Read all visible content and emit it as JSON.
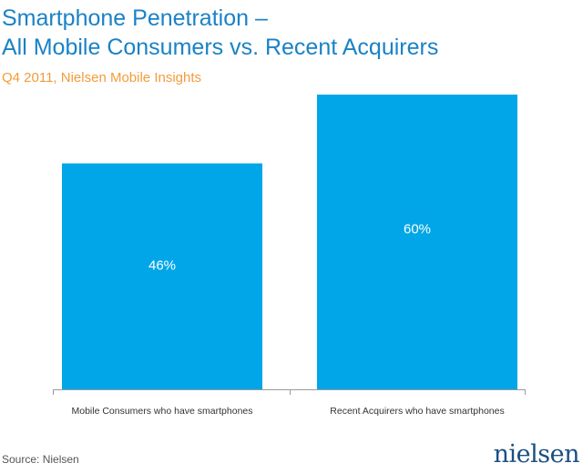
{
  "chart_data": {
    "type": "bar",
    "title_lines": [
      "Smartphone Penetration –",
      "All Mobile Consumers vs. Recent Acquirers"
    ],
    "subtitle": "Q4 2011, Nielsen Mobile Insights",
    "categories": [
      "Mobile Consumers who have smartphones",
      "Recent Acquirers who have smartphones"
    ],
    "values": [
      46,
      60
    ],
    "value_labels": [
      "46%",
      "60%"
    ],
    "ylim": [
      0,
      60
    ],
    "grid": false,
    "legend": "none",
    "bar_color": "#00a6e8",
    "value_label_color": "#ffffff",
    "axis_color": "#999999"
  },
  "colors": {
    "title": "#1a82c6",
    "subtitle": "#f39c3a",
    "logo": "#1b4f82"
  },
  "footer": {
    "source": "Source: Nielsen",
    "logo_text": "nielsen"
  }
}
